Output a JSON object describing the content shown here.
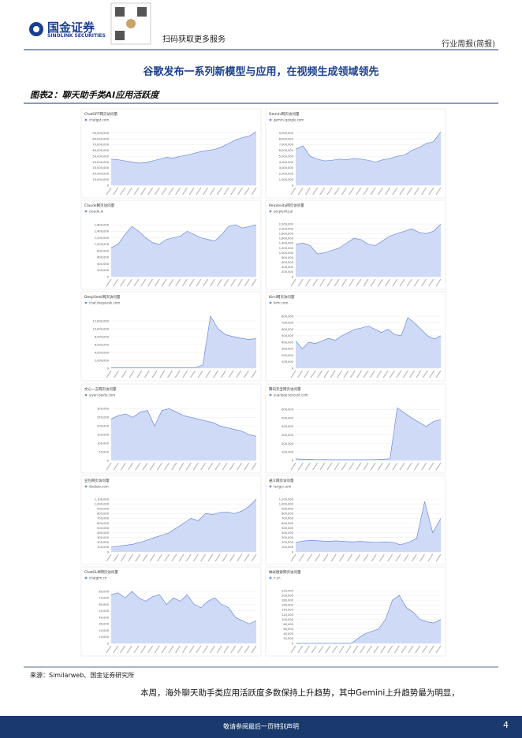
{
  "header": {
    "company": "国金证券",
    "company_en": "SINOLINK SECURITIES",
    "qr_text": "扫码获取更多服务",
    "report_type": "行业周报(简报)"
  },
  "title": "谷歌发布一系列新模型与应用，在视频生成领域领先",
  "figure_label": "图表2：聊天助手类AI应用活跃度",
  "source": "来源：Similarweb、国金证券研究所",
  "body": "本周，海外聊天助手类应用活跃度多数保持上升趋势，其中Gemini上升趋势最为明显，",
  "footer": "敬请参阅最后一页特别声明",
  "page_number": "4",
  "chart_data": [
    {
      "type": "area",
      "title": "ChatGPT网页访问量",
      "subtitle": "chatgpt.com",
      "color": "#6a8be0",
      "ylim": [
        0,
        95000000
      ],
      "yticks": [
        0,
        {
          "value": 10000000,
          "label": "10,000,000"
        },
        {
          "value": 20000000,
          "label": "20,000,000"
        },
        {
          "value": 30000000,
          "label": "30,000,000"
        },
        {
          "value": 40000000,
          "label": "40,000,000"
        },
        {
          "value": 50000000,
          "label": "50,000,000"
        },
        {
          "value": 60000000,
          "label": "60,000,000"
        },
        {
          "value": 70000000,
          "label": "70,000,000"
        },
        {
          "value": 80000000,
          "label": "80,000,000"
        },
        {
          "value": 90000000,
          "label": "90,000,000"
        }
      ],
      "values": [
        45000000,
        44000000,
        42000000,
        40000000,
        38000000,
        39000000,
        42000000,
        45000000,
        48000000,
        47000000,
        50000000,
        52000000,
        55000000,
        58000000,
        60000000,
        62000000,
        66000000,
        72000000,
        78000000,
        82000000,
        85000000,
        92000000
      ]
    },
    {
      "type": "area",
      "title": "Gemini网页访问量",
      "subtitle": "gemini.google.com",
      "color": "#6a8be0",
      "ylim": [
        0,
        9500000
      ],
      "yticks": [
        0,
        {
          "value": 1000000,
          "label": "1,000,000"
        },
        {
          "value": 2000000,
          "label": "2,000,000"
        },
        {
          "value": 3000000,
          "label": "3,000,000"
        },
        {
          "value": 4000000,
          "label": "4,000,000"
        },
        {
          "value": 5000000,
          "label": "5,000,000"
        },
        {
          "value": 6000000,
          "label": "6,000,000"
        },
        {
          "value": 7000000,
          "label": "7,000,000"
        },
        {
          "value": 8000000,
          "label": "8,000,000"
        },
        {
          "value": 9000000,
          "label": "9,000,000"
        }
      ],
      "values": [
        6200000,
        6800000,
        5000000,
        4500000,
        4200000,
        4300000,
        4500000,
        4400000,
        4600000,
        4500000,
        4300000,
        4000000,
        4400000,
        4600000,
        5000000,
        5200000,
        6000000,
        6500000,
        7200000,
        7500000,
        9200000
      ]
    },
    {
      "type": "area",
      "title": "Claude网页访问量",
      "subtitle": "claude.ai",
      "color": "#6a8be0",
      "ylim": [
        0,
        1700000
      ],
      "yticks": [
        0,
        {
          "value": 200000,
          "label": "200,000"
        },
        {
          "value": 400000,
          "label": "400,000"
        },
        {
          "value": 600000,
          "label": "600,000"
        },
        {
          "value": 800000,
          "label": "800,000"
        },
        {
          "value": 1000000,
          "label": "1,000,000"
        },
        {
          "value": 1200000,
          "label": "1,200,000"
        },
        {
          "value": 1400000,
          "label": "1,400,000"
        },
        {
          "value": 1600000,
          "label": "1,600,000"
        }
      ],
      "values": [
        900000,
        1000000,
        1300000,
        1550000,
        1400000,
        1200000,
        1050000,
        1000000,
        1150000,
        1200000,
        1250000,
        1400000,
        1300000,
        1200000,
        1150000,
        1100000,
        1300000,
        1550000,
        1600000,
        1500000,
        1550000,
        1600000
      ]
    },
    {
      "type": "area",
      "title": "Perplexity网页访问量",
      "subtitle": "perplexity.ai",
      "color": "#6a8be0",
      "ylim": [
        0,
        2300000
      ],
      "yticks": [
        0,
        {
          "value": 200000,
          "label": "200,000"
        },
        {
          "value": 400000,
          "label": "400,000"
        },
        {
          "value": 600000,
          "label": "600,000"
        },
        {
          "value": 800000,
          "label": "800,000"
        },
        {
          "value": 1000000,
          "label": "1,000,000"
        },
        {
          "value": 1200000,
          "label": "1,200,000"
        },
        {
          "value": 1400000,
          "label": "1,400,000"
        },
        {
          "value": 1600000,
          "label": "1,600,000"
        },
        {
          "value": 1800000,
          "label": "1,800,000"
        },
        {
          "value": 2000000,
          "label": "2,000,000"
        },
        {
          "value": 2200000,
          "label": "2,200,000"
        }
      ],
      "values": [
        1350000,
        1400000,
        1300000,
        950000,
        1000000,
        1100000,
        1200000,
        1400000,
        1600000,
        1550000,
        1350000,
        1300000,
        1500000,
        1700000,
        1800000,
        1900000,
        2000000,
        1850000,
        1800000,
        1900000,
        2200000
      ]
    },
    {
      "type": "area",
      "title": "DeepSeek网页访问量",
      "subtitle": "chat.deepseek.com",
      "color": "#6a8be0",
      "ylim": [
        0,
        14000000
      ],
      "yticks": [
        0,
        {
          "value": 2000000,
          "label": "2,000,000"
        },
        {
          "value": 4000000,
          "label": "4,000,000"
        },
        {
          "value": 6000000,
          "label": "6,000,000"
        },
        {
          "value": 8000000,
          "label": "8,000,000"
        },
        {
          "value": 10000000,
          "label": "10,000,000"
        },
        {
          "value": 12000000,
          "label": "12,000,000"
        }
      ],
      "values": [
        100000,
        100000,
        100000,
        100000,
        100000,
        100000,
        100000,
        100000,
        100000,
        100000,
        100000,
        100000,
        800000,
        13200000,
        10000000,
        8500000,
        8000000,
        7600000,
        7300000,
        7500000
      ]
    },
    {
      "type": "area",
      "title": "Kimi网页访问量",
      "subtitle": "kimi.com",
      "color": "#6a8be0",
      "ylim": [
        0,
        850000
      ],
      "yticks": [
        0,
        {
          "value": 100000,
          "label": "100,000"
        },
        {
          "value": 200000,
          "label": "200,000"
        },
        {
          "value": 300000,
          "label": "300,000"
        },
        {
          "value": 400000,
          "label": "400,000"
        },
        {
          "value": 500000,
          "label": "500,000"
        },
        {
          "value": 600000,
          "label": "600,000"
        },
        {
          "value": 700000,
          "label": "700,000"
        },
        {
          "value": 800000,
          "label": "800,000"
        }
      ],
      "values": [
        420000,
        300000,
        400000,
        380000,
        420000,
        460000,
        430000,
        500000,
        550000,
        600000,
        620000,
        650000,
        600000,
        550000,
        600000,
        520000,
        500000,
        780000,
        700000,
        600000,
        500000,
        450000,
        500000
      ]
    },
    {
      "type": "area",
      "title": "文心一言网页访问量",
      "subtitle": "yiyan.baidu.com",
      "color": "#6a8be0",
      "ylim": [
        0,
        320000
      ],
      "yticks": [
        0,
        {
          "value": 50000,
          "label": "50,000"
        },
        {
          "value": 100000,
          "label": "100,000"
        },
        {
          "value": 150000,
          "label": "150,000"
        },
        {
          "value": 200000,
          "label": "200,000"
        },
        {
          "value": 250000,
          "label": "250,000"
        },
        {
          "value": 300000,
          "label": "300,000"
        }
      ],
      "values": [
        240000,
        260000,
        270000,
        250000,
        280000,
        290000,
        200000,
        290000,
        300000,
        280000,
        260000,
        250000,
        240000,
        230000,
        220000,
        200000,
        190000,
        180000,
        170000,
        150000,
        140000
      ]
    },
    {
      "type": "area",
      "title": "腾讯元宝网页访问量",
      "subtitle": "yuanbao.tencent.com",
      "color": "#6a8be0",
      "ylim": [
        0,
        650000
      ],
      "yticks": [
        0,
        {
          "value": 100000,
          "label": "100,000"
        },
        {
          "value": 200000,
          "label": "200,000"
        },
        {
          "value": 300000,
          "label": "300,000"
        },
        {
          "value": 400000,
          "label": "400,000"
        },
        {
          "value": 500000,
          "label": "500,000"
        },
        {
          "value": 600000,
          "label": "600,000"
        }
      ],
      "values": [
        20000,
        15000,
        15000,
        10000,
        12000,
        10000,
        10000,
        10000,
        10000,
        10000,
        10000,
        12000,
        15000,
        20000,
        620000,
        560000,
        500000,
        450000,
        400000,
        460000,
        480000
      ]
    },
    {
      "type": "area",
      "title": "豆包网页访问量",
      "subtitle": "doubao.com",
      "color": "#6a8be0",
      "ylim": [
        0,
        1150000
      ],
      "yticks": [
        0,
        {
          "value": 100000,
          "label": "100,000"
        },
        {
          "value": 200000,
          "label": "200,000"
        },
        {
          "value": 300000,
          "label": "300,000"
        },
        {
          "value": 400000,
          "label": "400,000"
        },
        {
          "value": 500000,
          "label": "500,000"
        },
        {
          "value": 600000,
          "label": "600,000"
        },
        {
          "value": 700000,
          "label": "700,000"
        },
        {
          "value": 800000,
          "label": "800,000"
        },
        {
          "value": 900000,
          "label": "900,000"
        },
        {
          "value": 1000000,
          "label": "1,000,000"
        },
        {
          "value": 1100000,
          "label": "1,100,000"
        }
      ],
      "values": [
        100000,
        120000,
        140000,
        160000,
        200000,
        250000,
        300000,
        350000,
        400000,
        500000,
        600000,
        700000,
        650000,
        800000,
        780000,
        820000,
        830000,
        800000,
        850000,
        950000,
        1100000
      ]
    },
    {
      "type": "area",
      "title": "通义网页访问量",
      "subtitle": "tongyi.com",
      "color": "#6a8be0",
      "ylim": [
        0,
        1150000
      ],
      "yticks": [
        0,
        {
          "value": 100000,
          "label": "100,000"
        },
        {
          "value": 200000,
          "label": "200,000"
        },
        {
          "value": 300000,
          "label": "300,000"
        },
        {
          "value": 400000,
          "label": "400,000"
        },
        {
          "value": 500000,
          "label": "500,000"
        },
        {
          "value": 600000,
          "label": "600,000"
        },
        {
          "value": 700000,
          "label": "700,000"
        },
        {
          "value": 800000,
          "label": "800,000"
        },
        {
          "value": 900000,
          "label": "900,000"
        },
        {
          "value": 1000000,
          "label": "1,000,000"
        },
        {
          "value": 1100000,
          "label": "1,100,000"
        }
      ],
      "values": [
        200000,
        230000,
        240000,
        230000,
        220000,
        230000,
        220000,
        210000,
        220000,
        210000,
        200000,
        210000,
        200000,
        150000,
        200000,
        280000,
        1050000,
        400000,
        700000
      ]
    },
    {
      "type": "area",
      "title": "ChatGLM网页访问量",
      "subtitle": "chatglm.cn",
      "color": "#6a8be0",
      "ylim": [
        0,
        85000
      ],
      "yticks": [
        0,
        {
          "value": 10000,
          "label": "10,000"
        },
        {
          "value": 20000,
          "label": "20,000"
        },
        {
          "value": 30000,
          "label": "30,000"
        },
        {
          "value": 40000,
          "label": "40,000"
        },
        {
          "value": 50000,
          "label": "50,000"
        },
        {
          "value": 60000,
          "label": "60,000"
        },
        {
          "value": 70000,
          "label": "70,000"
        },
        {
          "value": 80000,
          "label": "80,000"
        }
      ],
      "values": [
        75000,
        78000,
        70000,
        80000,
        70000,
        65000,
        72000,
        75000,
        60000,
        70000,
        65000,
        75000,
        60000,
        55000,
        65000,
        70000,
        60000,
        55000,
        40000,
        35000,
        30000,
        35000
      ]
    },
    {
      "type": "area",
      "title": "纳米搜索网页访问量",
      "subtitle": "n.cn",
      "color": "#6a8be0",
      "ylim": [
        0,
        230000
      ],
      "yticks": [
        0,
        {
          "value": 20000,
          "label": "20,000"
        },
        {
          "value": 40000,
          "label": "40,000"
        },
        {
          "value": 60000,
          "label": "60,000"
        },
        {
          "value": 80000,
          "label": "80,000"
        },
        {
          "value": 100000,
          "label": "100,000"
        },
        {
          "value": 120000,
          "label": "120,000"
        },
        {
          "value": 140000,
          "label": "140,000"
        },
        {
          "value": 160000,
          "label": "160,000"
        },
        {
          "value": 180000,
          "label": "180,000"
        },
        {
          "value": 200000,
          "label": "200,000"
        },
        {
          "value": 220000,
          "label": "220,000"
        }
      ],
      "values": [
        0,
        0,
        0,
        0,
        0,
        0,
        0,
        0,
        0,
        20000,
        40000,
        50000,
        60000,
        100000,
        180000,
        200000,
        150000,
        130000,
        100000,
        90000,
        85000,
        100000
      ]
    }
  ]
}
